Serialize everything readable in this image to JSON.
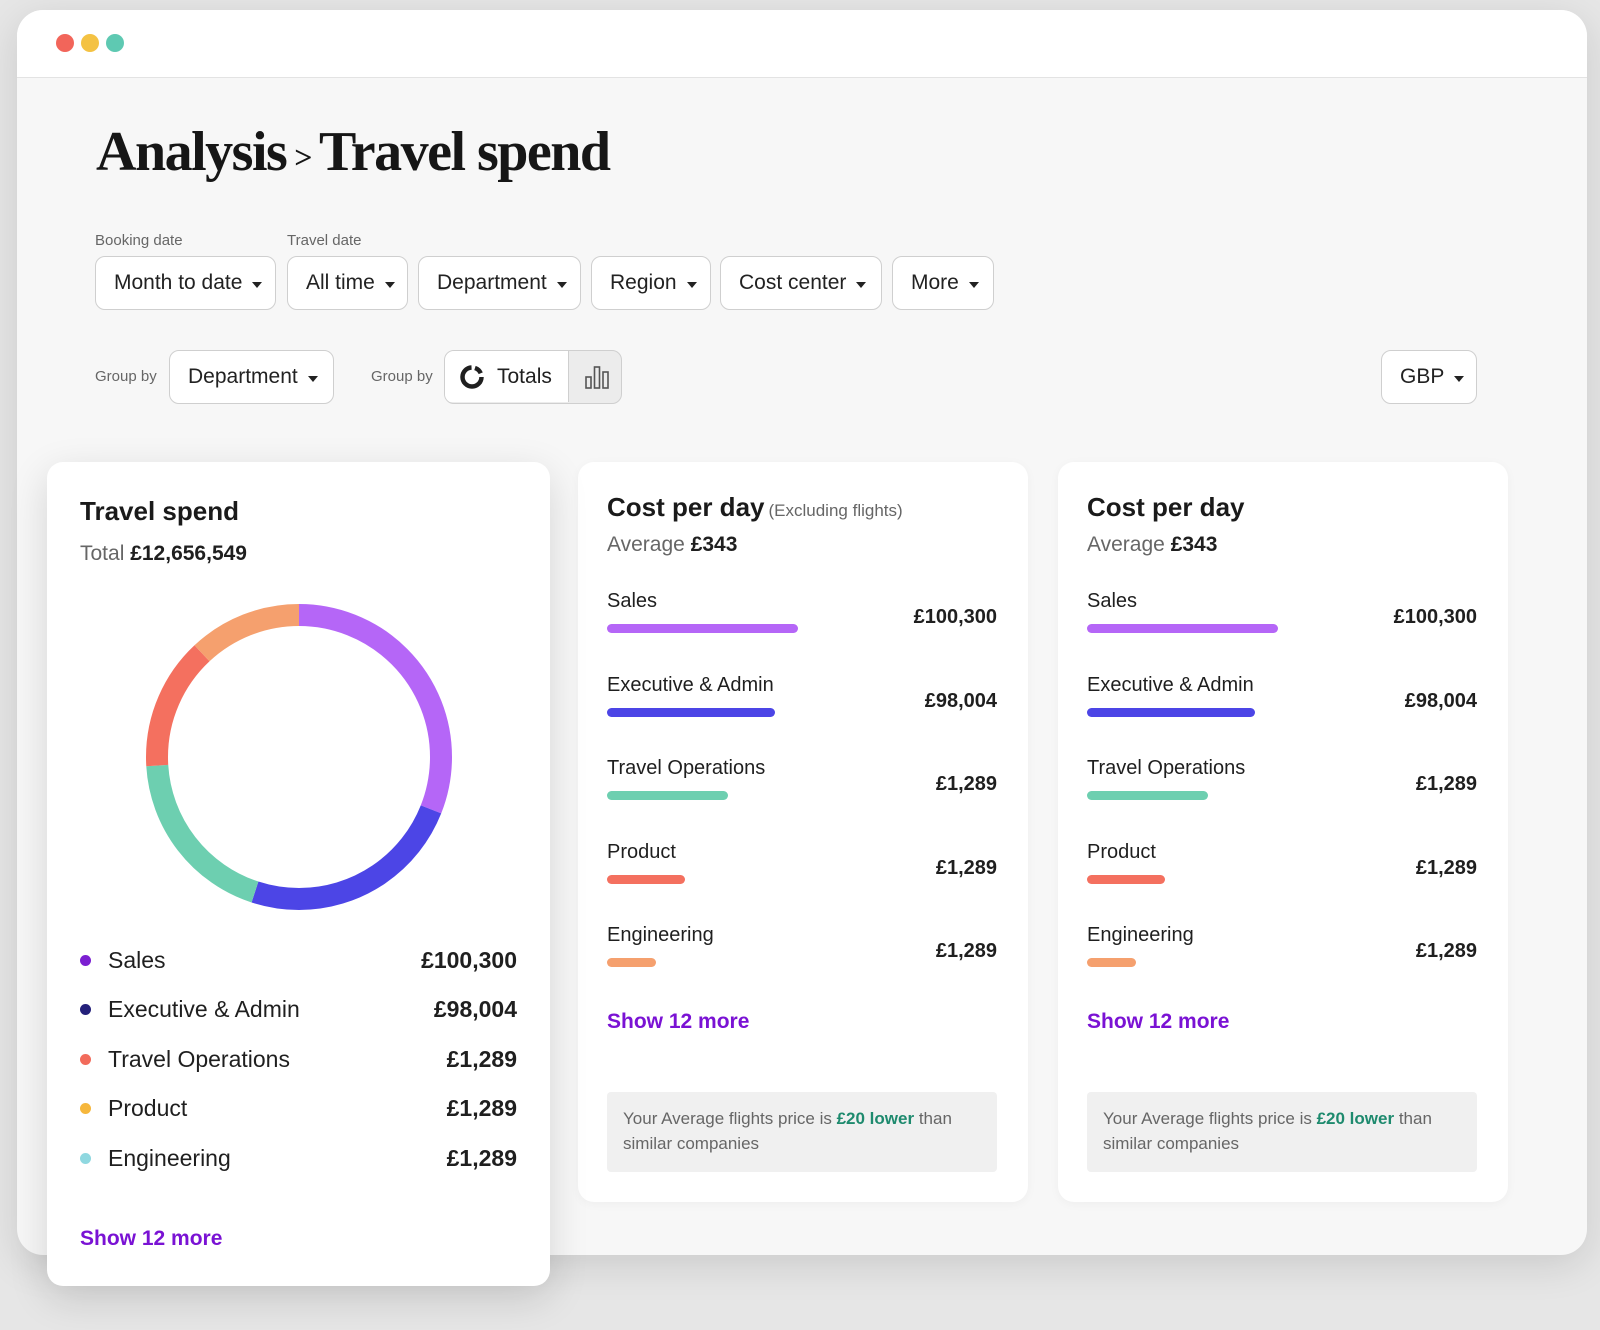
{
  "window": {
    "controls": [
      "close",
      "minimize",
      "zoom"
    ]
  },
  "breadcrumb": {
    "parent": "Analysis",
    "separator": ">",
    "current": "Travel spend"
  },
  "filters": {
    "booking_date_label": "Booking date",
    "travel_date_label": "Travel date",
    "booking_date_value": "Month to date",
    "travel_date_value": "All time",
    "department": "Department",
    "region": "Region",
    "cost_center": "Cost center",
    "more": "More"
  },
  "grouping": {
    "group_by_label_1": "Group by",
    "group_by_value": "Department",
    "group_by_label_2": "Group by",
    "view_totals": "Totals",
    "view_selected": "totals"
  },
  "currency": {
    "value": "GBP"
  },
  "travel_spend_card": {
    "title": "Travel spend",
    "total_label": "Total",
    "total_value": "£12,656,549",
    "legend": [
      {
        "name": "Sales",
        "value": "£100,300",
        "color": "#7b1fd1"
      },
      {
        "name": "Executive & Admin",
        "value": "£98,004",
        "color": "#24207a"
      },
      {
        "name": "Travel Operations",
        "value": "£1,289",
        "color": "#f26b5b"
      },
      {
        "name": "Product",
        "value": "£1,289",
        "color": "#f6b73c"
      },
      {
        "name": "Engineering",
        "value": "£1,289",
        "color": "#8fd8e0"
      }
    ],
    "donut_segments": [
      {
        "name": "Sales",
        "fraction": 0.31,
        "color": "#b566f7"
      },
      {
        "name": "Executive & Admin",
        "fraction": 0.24,
        "color": "#4c45e6"
      },
      {
        "name": "Travel Operations (green)",
        "fraction": 0.19,
        "color": "#6dcfb0"
      },
      {
        "name": "Product",
        "fraction": 0.14,
        "color": "#f4705f"
      },
      {
        "name": "Engineering",
        "fraction": 0.12,
        "color": "#f5a06e"
      }
    ],
    "show_more": "Show 12 more"
  },
  "cost_card_a": {
    "title": "Cost per day",
    "title_note": "(Excluding flights)",
    "average_label": "Average",
    "average_value": "£343",
    "items": [
      {
        "name": "Sales",
        "value": "£100,300",
        "fraction": 0.49,
        "color": "#b566f7"
      },
      {
        "name": "Executive & Admin",
        "value": "£98,004",
        "fraction": 0.43,
        "color": "#4c45e6"
      },
      {
        "name": "Travel Operations",
        "value": "£1,289",
        "fraction": 0.31,
        "color": "#6dcfb0"
      },
      {
        "name": "Product",
        "value": "£1,289",
        "fraction": 0.2,
        "color": "#f4705f"
      },
      {
        "name": "Engineering",
        "value": "£1,289",
        "fraction": 0.125,
        "color": "#f5a06e"
      }
    ],
    "show_more": "Show 12 more",
    "note_prefix": "Your Average flights price is",
    "note_highlight": "£20 lower",
    "note_suffix": "than similar companies"
  },
  "cost_card_b": {
    "title": "Cost per day",
    "average_label": "Average",
    "average_value": "£343",
    "items": [
      {
        "name": "Sales",
        "value": "£100,300",
        "fraction": 0.49,
        "color": "#b566f7"
      },
      {
        "name": "Executive & Admin",
        "value": "£98,004",
        "fraction": 0.43,
        "color": "#4c45e6"
      },
      {
        "name": "Travel Operations",
        "value": "£1,289",
        "fraction": 0.31,
        "color": "#6dcfb0"
      },
      {
        "name": "Product",
        "value": "£1,289",
        "fraction": 0.2,
        "color": "#f4705f"
      },
      {
        "name": "Engineering",
        "value": "£1,289",
        "fraction": 0.125,
        "color": "#f5a06e"
      }
    ],
    "show_more": "Show 12 more",
    "note_prefix": "Your Average flights price is",
    "note_highlight": "£20 lower",
    "note_suffix": "than similar companies"
  }
}
